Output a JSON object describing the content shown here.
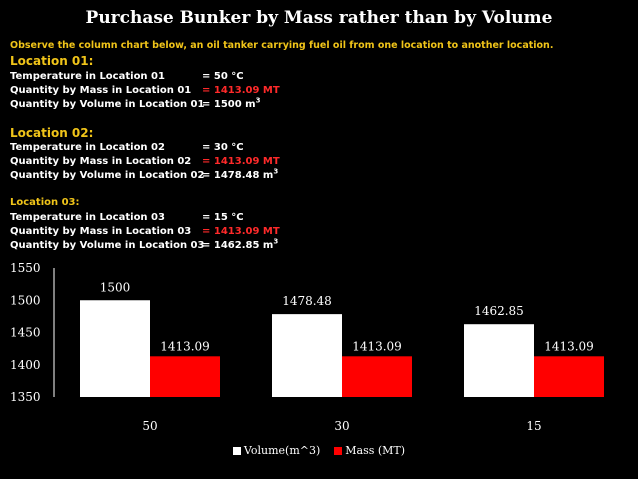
{
  "title": "Purchase Bunker by Mass rather than by Volume",
  "intro": "Observe the column chart below,  an oil tanker carrying fuel oil from one location to another location.",
  "locations": [
    {
      "heading": "Location 01:",
      "temp_label": "Temperature in Location 01",
      "temp_value": "= 50 °C",
      "mass_label": "Quantity by Mass  in Location 01",
      "mass_value": "= 1413.09 MT",
      "vol_label": "Quantity by Volume in Location 01",
      "vol_value": "= 1500 m",
      "vol_unit_sup": "3"
    },
    {
      "heading": "Location 02:",
      "temp_label": "Temperature in Location 02",
      "temp_value": "= 30 °C",
      "mass_label": "Quantity by Mass in Location 02",
      "mass_value": "= 1413.09 MT",
      "vol_label": "Quantity by Volume in Location 02",
      "vol_value": "= 1478.48 m",
      "vol_unit_sup": "3"
    },
    {
      "heading": "Location 03:",
      "temp_label": "Temperature in Location 03",
      "temp_value": "= 15 °C",
      "mass_label": "Quantity by Mass in Location 03",
      "mass_value": "= 1413.09 MT",
      "vol_label": "Quantity by Volume in Location 03",
      "vol_value": "= 1462.85 m",
      "vol_unit_sup": "3"
    }
  ],
  "colors": {
    "heading_yellow": "#f0c419",
    "mass_red": "#ff2a2a",
    "volume_bar": "#ffffff",
    "mass_bar": "#ff0000",
    "background": "#000000"
  },
  "chart_data": {
    "type": "bar",
    "title": "",
    "xlabel": "",
    "ylabel": "",
    "categories": [
      "50",
      "30",
      "15"
    ],
    "series": [
      {
        "name": "Volume(m^3)",
        "values": [
          1500,
          1478.48,
          1462.85
        ],
        "labels": [
          "1500",
          "1478.48",
          "1462.85"
        ],
        "color": "#ffffff"
      },
      {
        "name": "Mass (MT)",
        "values": [
          1413.09,
          1413.09,
          1413.09
        ],
        "labels": [
          "1413.09",
          "1413.09",
          "1413.09"
        ],
        "color": "#ff0000"
      }
    ],
    "ylim": [
      1350,
      1550
    ],
    "yticks": [
      "1350",
      "1400",
      "1450",
      "1500",
      "1550"
    ],
    "grid": false,
    "legend": "bottom"
  }
}
